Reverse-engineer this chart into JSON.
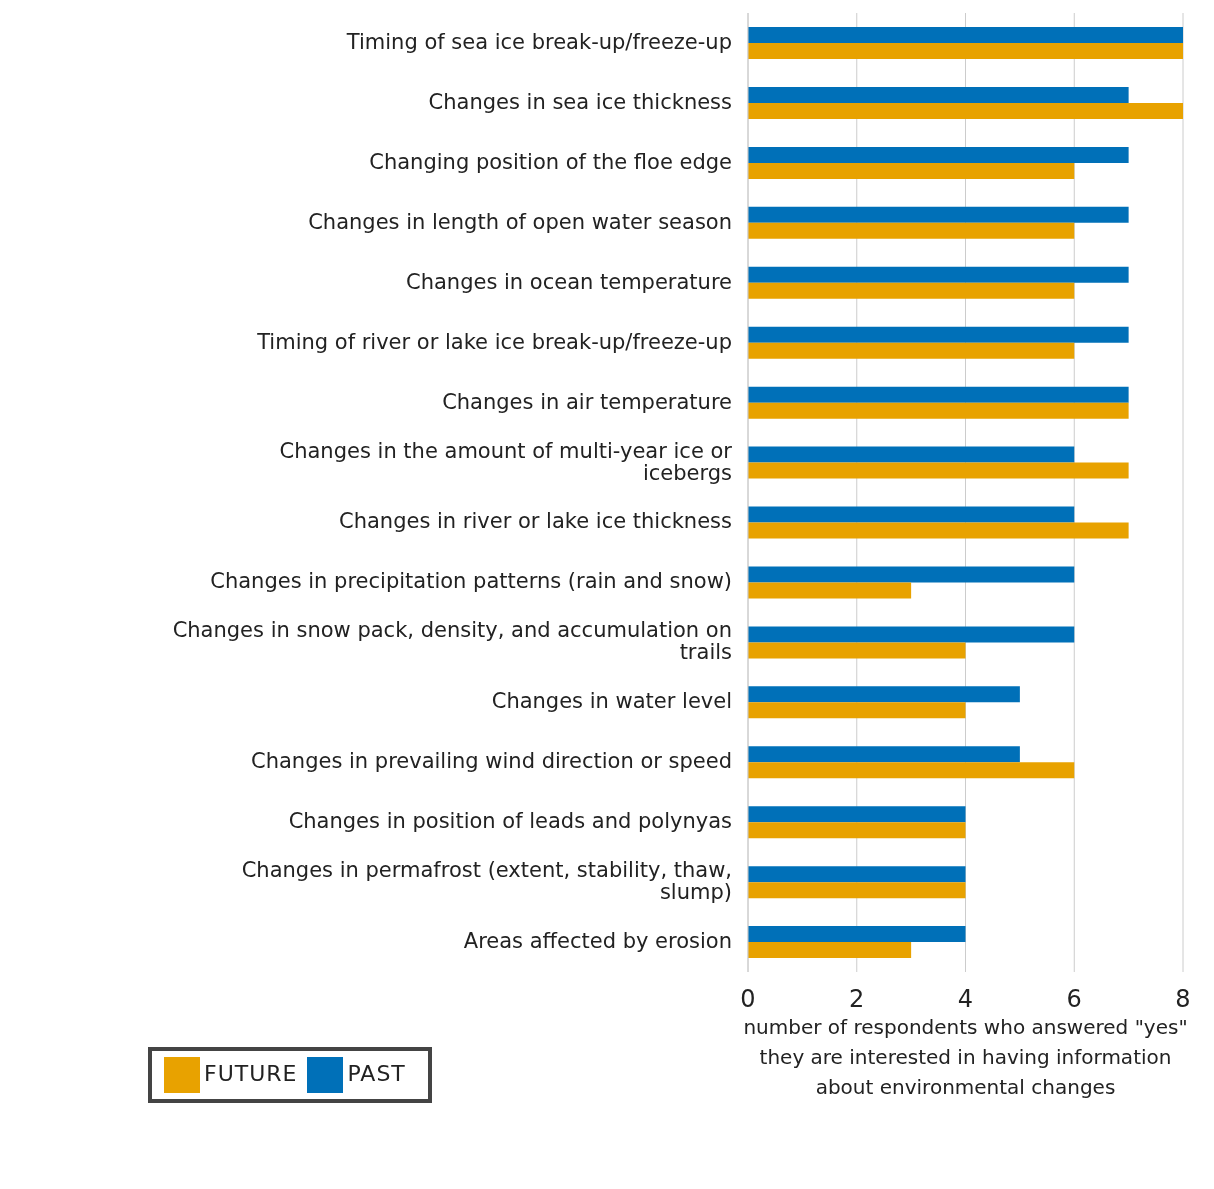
{
  "chart_data": {
    "type": "bar",
    "orientation": "horizontal",
    "xlabel": "number of respondents who answered \"yes\" they are interested in having information about environmental changes",
    "categories": [
      "Timing of sea ice break-up/freeze-up",
      "Changes in sea ice thickness",
      "Changing position of the floe edge",
      "Changes in length of open water season",
      "Changes in ocean temperature",
      "Timing of river or lake ice break-up/freeze-up",
      "Changes in air temperature",
      "Changes in the amount of multi-year ice or icebergs",
      "Changes in river or lake ice thickness",
      "Changes in precipitation patterns (rain and snow)",
      "Changes in snow pack, density, and accumulation on trails",
      "Changes in water level",
      "Changes in prevailing wind direction or speed",
      "Changes in position of leads and polynyas",
      "Changes in permafrost (extent, stability, thaw, slump)",
      "Areas affected by erosion"
    ],
    "series": [
      {
        "name": "PAST",
        "color": "#0070b8",
        "values": [
          8,
          7,
          7,
          7,
          7,
          7,
          7,
          6,
          6,
          6,
          6,
          5,
          5,
          4,
          4,
          4
        ]
      },
      {
        "name": "FUTURE",
        "color": "#e8a200",
        "values": [
          8,
          8,
          6,
          6,
          6,
          6,
          7,
          7,
          7,
          3,
          4,
          4,
          6,
          4,
          4,
          3
        ]
      }
    ],
    "xlim": [
      0,
      8
    ],
    "xticks": [
      0,
      2,
      4,
      6,
      8
    ],
    "grid": "x",
    "legend": "bottom left"
  }
}
